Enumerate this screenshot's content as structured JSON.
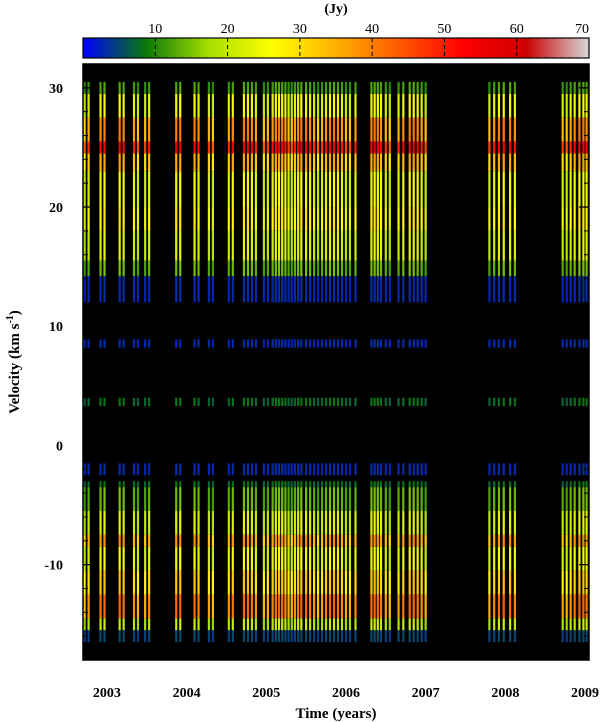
{
  "chart_data": {
    "type": "heatmap",
    "title": "",
    "xlabel": "Time (years)",
    "ylabel": "Velocity (km s",
    "ylabel_sup": "-1",
    "ylabel_close": ")",
    "colorbar_unit": "(Jy)",
    "colorbar_ticks": [
      "10",
      "20",
      "30",
      "40",
      "50",
      "60",
      "70"
    ],
    "colorbar_range": [
      0,
      70
    ],
    "colorbar_colors": [
      "#0000ff",
      "#0a7a0a",
      "#a8e000",
      "#ffff00",
      "#ffb000",
      "#ff5a00",
      "#ff0000",
      "#cc0000",
      "#d8d8d8"
    ],
    "x_range": [
      2002.7,
      2009.05
    ],
    "y_range": [
      -18,
      32
    ],
    "x_ticks": [
      "2003",
      "2004",
      "2005",
      "2006",
      "2007",
      "2008",
      "2009"
    ],
    "y_ticks": [
      "30",
      "20",
      "10",
      "0",
      "-10"
    ],
    "background": "#000000",
    "observation_epochs": [
      2002.72,
      2002.77,
      2002.92,
      2002.97,
      2003.16,
      2003.21,
      2003.34,
      2003.39,
      2003.48,
      2003.53,
      2003.87,
      2003.92,
      2004.1,
      2004.15,
      2004.28,
      2004.33,
      2004.53,
      2004.58,
      2004.72,
      2004.77,
      2004.82,
      2004.87,
      2004.97,
      2005.02,
      2005.08,
      2005.12,
      2005.16,
      2005.2,
      2005.24,
      2005.28,
      2005.32,
      2005.36,
      2005.4,
      2005.44,
      2005.5,
      2005.55,
      2005.6,
      2005.65,
      2005.7,
      2005.75,
      2005.8,
      2005.85,
      2005.9,
      2005.95,
      2006.0,
      2006.05,
      2006.12,
      2006.32,
      2006.36,
      2006.4,
      2006.44,
      2006.5,
      2006.55,
      2006.66,
      2006.72,
      2006.8,
      2006.85,
      2006.9,
      2006.95,
      2007.0,
      2007.8,
      2007.86,
      2007.92,
      2007.98,
      2008.06,
      2008.12,
      2008.72,
      2008.77,
      2008.82,
      2008.87,
      2008.93,
      2008.98,
      2009.02
    ],
    "spectral_profile": [
      {
        "v_min": -16.5,
        "v_max": -15.5,
        "flux_jy": 5
      },
      {
        "v_min": -15.5,
        "v_max": -14.5,
        "flux_jy": 20
      },
      {
        "v_min": -14.5,
        "v_max": -12.5,
        "flux_jy": 40
      },
      {
        "v_min": -12.5,
        "v_max": -10.5,
        "flux_jy": 31
      },
      {
        "v_min": -10.5,
        "v_max": -8.5,
        "flux_jy": 24
      },
      {
        "v_min": -8.5,
        "v_max": -7.5,
        "flux_jy": 36
      },
      {
        "v_min": -7.5,
        "v_max": -5.5,
        "flux_jy": 22
      },
      {
        "v_min": -5.5,
        "v_max": -3.5,
        "flux_jy": 14
      },
      {
        "v_min": -3.5,
        "v_max": -3.0,
        "flux_jy": 8
      },
      {
        "v_min": -2.5,
        "v_max": -1.5,
        "flux_jy": 3
      },
      {
        "v_min": 3.3,
        "v_max": 4.0,
        "flux_jy": 8
      },
      {
        "v_min": 8.2,
        "v_max": 8.9,
        "flux_jy": 3
      },
      {
        "v_min": 12.0,
        "v_max": 14.2,
        "flux_jy": 3
      },
      {
        "v_min": 14.2,
        "v_max": 15.5,
        "flux_jy": 14
      },
      {
        "v_min": 15.5,
        "v_max": 18.0,
        "flux_jy": 22
      },
      {
        "v_min": 18.0,
        "v_max": 20.0,
        "flux_jy": 27
      },
      {
        "v_min": 20.0,
        "v_max": 23.0,
        "flux_jy": 24
      },
      {
        "v_min": 23.0,
        "v_max": 24.5,
        "flux_jy": 34
      },
      {
        "v_min": 24.5,
        "v_max": 25.5,
        "flux_jy": 52
      },
      {
        "v_min": 25.5,
        "v_max": 27.5,
        "flux_jy": 38
      },
      {
        "v_min": 27.5,
        "v_max": 29.5,
        "flux_jy": 24
      },
      {
        "v_min": 29.5,
        "v_max": 30.5,
        "flux_jy": 12
      }
    ],
    "grid": false,
    "legend": "colorbar top"
  }
}
